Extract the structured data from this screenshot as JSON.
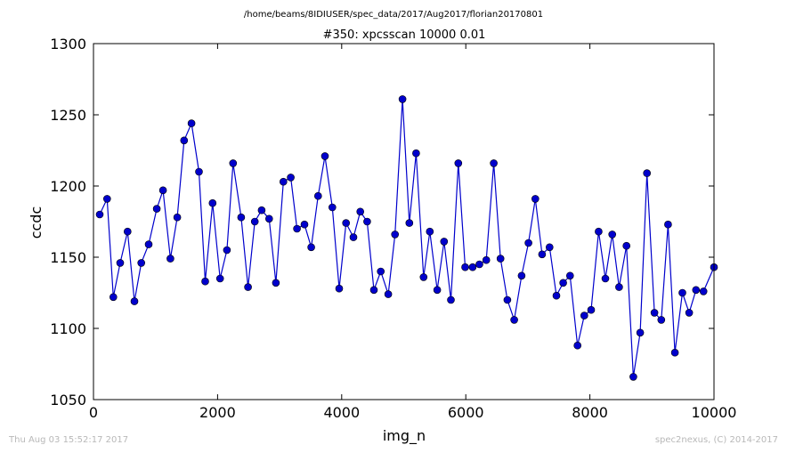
{
  "chart_data": {
    "type": "line",
    "suptitle": "/home/beams/8IDIUSER/spec_data/2017/Aug2017/florian20170801",
    "title": "#350: xpcsscan 10000 0.01",
    "xlabel": "img_n",
    "ylabel": "ccdc",
    "xlim": [
      0,
      10000
    ],
    "ylim": [
      1050,
      1300
    ],
    "xticks": [
      0,
      2000,
      4000,
      6000,
      8000,
      10000
    ],
    "yticks": [
      1050,
      1100,
      1150,
      1200,
      1250,
      1300
    ],
    "grid": false,
    "series": [
      {
        "color": "#0000cc",
        "marker": "circle",
        "x": [
          100,
          220,
          320,
          430,
          550,
          660,
          770,
          890,
          1020,
          1120,
          1240,
          1350,
          1460,
          1580,
          1700,
          1800,
          1920,
          2040,
          2150,
          2250,
          2380,
          2490,
          2600,
          2710,
          2830,
          2940,
          3060,
          3180,
          3280,
          3400,
          3510,
          3620,
          3730,
          3850,
          3960,
          4070,
          4190,
          4300,
          4410,
          4520,
          4630,
          4750,
          4860,
          4980,
          5090,
          5200,
          5320,
          5420,
          5540,
          5650,
          5760,
          5880,
          5990,
          6110,
          6220,
          6330,
          6450,
          6560,
          6670,
          6780,
          6900,
          7010,
          7120,
          7230,
          7350,
          7460,
          7570,
          7680,
          7800,
          7910,
          8020,
          8140,
          8250,
          8360,
          8470,
          8590,
          8700,
          8810,
          8920,
          9040,
          9150,
          9260,
          9370,
          9490,
          9600,
          9710,
          9830,
          10000
        ],
        "y": [
          1180,
          1191,
          1122,
          1146,
          1168,
          1119,
          1146,
          1159,
          1184,
          1197,
          1149,
          1178,
          1232,
          1244,
          1210,
          1133,
          1188,
          1135,
          1155,
          1216,
          1178,
          1129,
          1175,
          1183,
          1177,
          1132,
          1203,
          1206,
          1170,
          1173,
          1157,
          1193,
          1221,
          1185,
          1128,
          1174,
          1164,
          1182,
          1175,
          1127,
          1140,
          1124,
          1166,
          1261,
          1174,
          1223,
          1136,
          1168,
          1127,
          1161,
          1120,
          1216,
          1143,
          1143,
          1145,
          1148,
          1216,
          1149,
          1120,
          1106,
          1137,
          1160,
          1191,
          1152,
          1157,
          1123,
          1132,
          1137,
          1088,
          1109,
          1113,
          1168,
          1135,
          1166,
          1129,
          1158,
          1066,
          1097,
          1209,
          1111,
          1106,
          1173,
          1083,
          1125,
          1111,
          1127,
          1126,
          1143
        ]
      }
    ]
  },
  "footer": {
    "left": "Thu Aug 03 15:52:17 2017",
    "right": "spec2nexus, (C) 2014-2017"
  }
}
